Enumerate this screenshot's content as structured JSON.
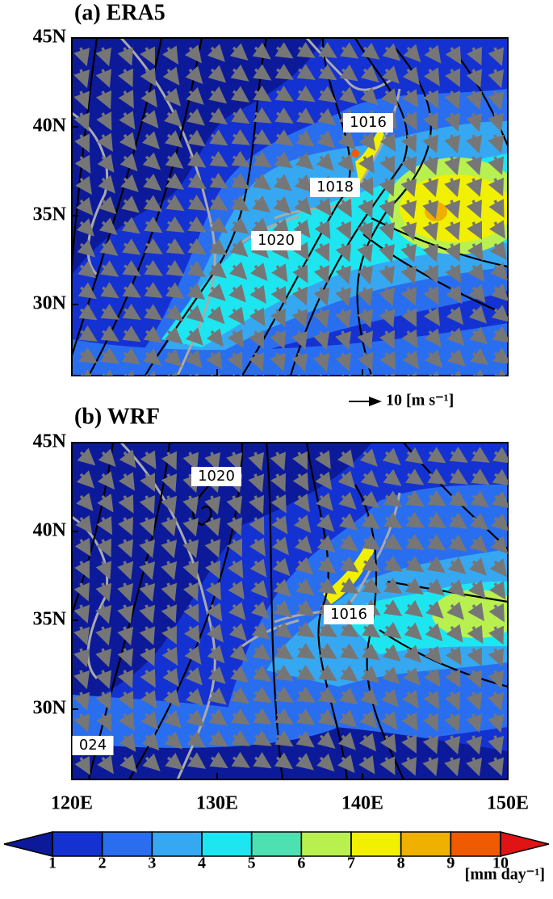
{
  "panels": [
    {
      "label": "(a) ERA5",
      "contour_labels": [
        "1016",
        "1018",
        "1020"
      ]
    },
    {
      "label": "(b) WRF",
      "contour_labels": [
        "1020",
        "1016",
        "024"
      ]
    }
  ],
  "lat_ticks": [
    {
      "value": 45,
      "label": "45N"
    },
    {
      "value": 40,
      "label": "40N"
    },
    {
      "value": 35,
      "label": "35N"
    },
    {
      "value": 30,
      "label": "30N"
    }
  ],
  "lon_ticks": [
    {
      "value": 120,
      "label": "120E"
    },
    {
      "value": 130,
      "label": "130E"
    },
    {
      "value": 140,
      "label": "140E"
    },
    {
      "value": 150,
      "label": "150E"
    }
  ],
  "reference_vector": "10 [m s⁻¹]",
  "colorbar": {
    "levels": [
      1,
      2,
      3,
      4,
      5,
      6,
      7,
      8,
      9,
      10
    ],
    "colors": [
      "#0c1a9a",
      "#1432d2",
      "#2a6ef0",
      "#36a8f2",
      "#1ee6f0",
      "#4ee0b0",
      "#b8f050",
      "#f0f000",
      "#f0b000",
      "#f05a00",
      "#e01414"
    ],
    "unit": "[mm day⁻¹]"
  }
}
